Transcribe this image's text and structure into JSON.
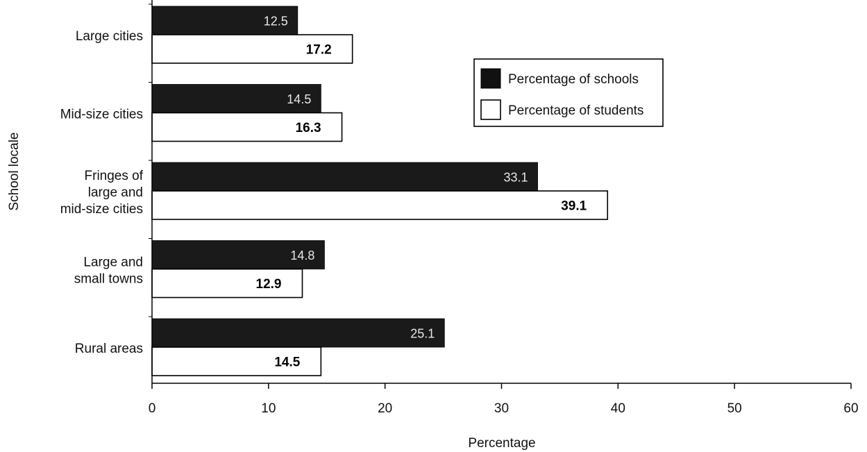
{
  "chart_data": {
    "type": "bar",
    "orientation": "horizontal",
    "categories": [
      [
        "Large cities"
      ],
      [
        "Mid-size cities"
      ],
      [
        "Fringes of",
        "large and",
        "mid-size cities"
      ],
      [
        "Large and",
        "small towns"
      ],
      [
        "Rural areas"
      ]
    ],
    "series": [
      {
        "name": "Percentage of schools",
        "values": [
          12.5,
          14.5,
          33.1,
          14.8,
          25.1
        ],
        "labels": [
          "12.5",
          "14.5",
          "33.1",
          "14.8",
          "25.1"
        ],
        "color": "#1a1a1a"
      },
      {
        "name": "Percentage of students",
        "values": [
          17.2,
          16.3,
          39.1,
          12.9,
          14.5
        ],
        "labels": [
          "17.2",
          "16.3",
          "39.1",
          "12.9",
          "14.5"
        ],
        "color": "#ffffff"
      }
    ],
    "xlabel": "Percentage",
    "ylabel": "School locale",
    "xlim": [
      0,
      60
    ],
    "xticks": [
      "0",
      "10",
      "20",
      "30",
      "40",
      "50",
      "60"
    ],
    "grid": false,
    "legend_position": "top-right"
  }
}
